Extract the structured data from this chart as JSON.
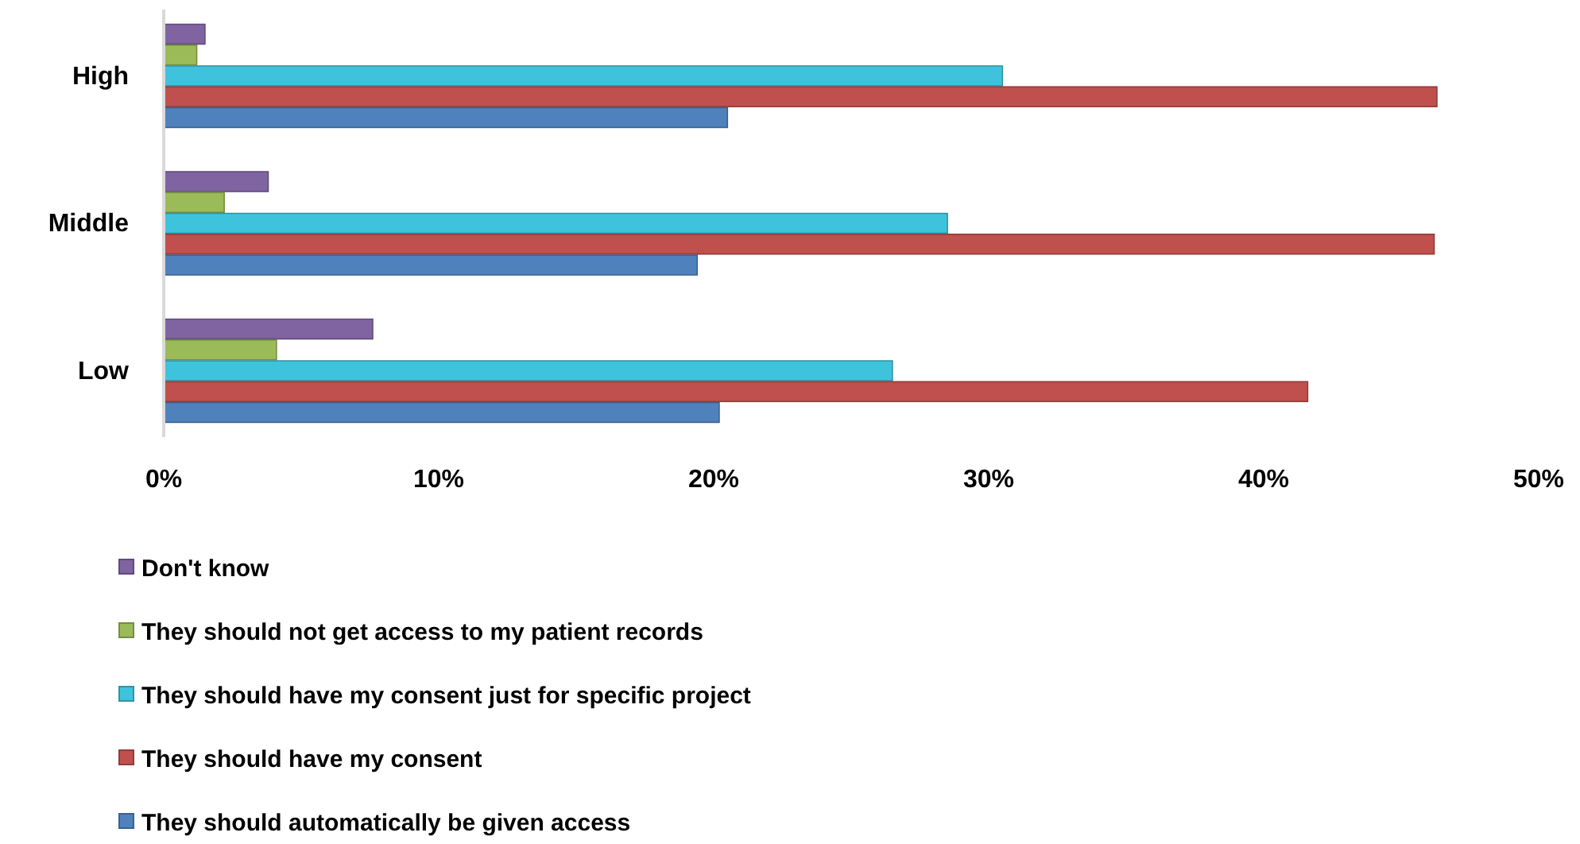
{
  "chart_data": {
    "type": "bar",
    "orientation": "horizontal",
    "categories": [
      "High",
      "Middle",
      "Low"
    ],
    "series": [
      {
        "name": "Don't know",
        "color": "#8064a2",
        "values": [
          1.5,
          3.8,
          7.6
        ]
      },
      {
        "name": "They should not get access to my patient records",
        "color": "#9bbb59",
        "values": [
          1.2,
          2.2,
          4.1
        ]
      },
      {
        "name": "They should have my consent just for specific project",
        "color": "#3fc3dc",
        "values": [
          30.5,
          28.5,
          26.5
        ]
      },
      {
        "name": "They should have my consent",
        "color": "#c0504d",
        "values": [
          46.3,
          46.2,
          41.6
        ]
      },
      {
        "name": "They should automatically be given access",
        "color": "#4f81bd",
        "values": [
          20.5,
          19.4,
          20.2
        ]
      }
    ],
    "xlim": [
      0,
      50
    ],
    "xticks": [
      {
        "value": 0,
        "label": "0%"
      },
      {
        "value": 10,
        "label": "10%"
      },
      {
        "value": 20,
        "label": "20%"
      },
      {
        "value": 30,
        "label": "30%"
      },
      {
        "value": 40,
        "label": "40%"
      },
      {
        "value": 50,
        "label": "50%"
      }
    ],
    "grid": false,
    "legend": "bottom"
  }
}
